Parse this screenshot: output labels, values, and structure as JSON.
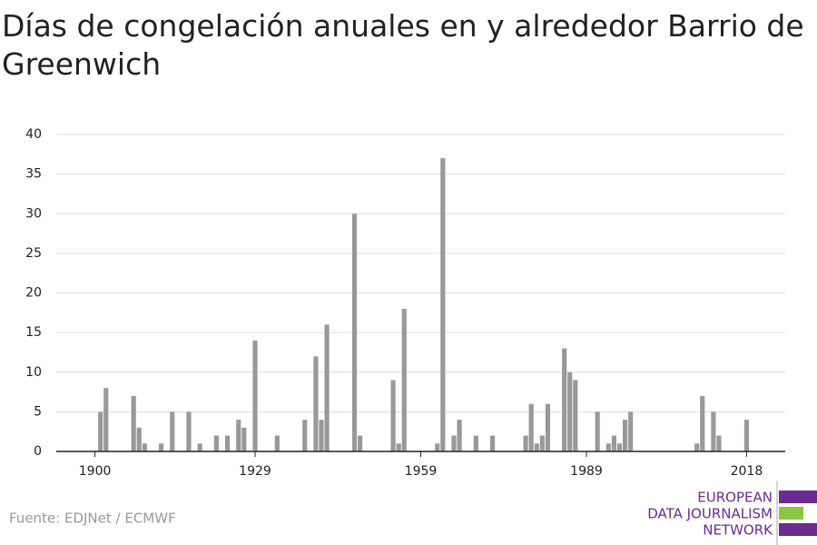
{
  "chart_data": {
    "type": "bar",
    "title": "Días de congelación anuales en y alrededor Barrio de Greenwich",
    "source": "Fuente: EDJNet / ECMWF",
    "logo": [
      "EUROPEAN",
      "DATA JOURNALISM",
      "NETWORK"
    ],
    "x": [
      1901,
      1902,
      1907,
      1908,
      1909,
      1912,
      1914,
      1917,
      1919,
      1922,
      1924,
      1926,
      1927,
      1929,
      1933,
      1938,
      1940,
      1941,
      1942,
      1947,
      1948,
      1954,
      1955,
      1956,
      1962,
      1963,
      1965,
      1966,
      1969,
      1972,
      1978,
      1979,
      1980,
      1981,
      1982,
      1985,
      1986,
      1987,
      1991,
      1993,
      1994,
      1995,
      1996,
      1997,
      2009,
      2010,
      2012,
      2013,
      2018
    ],
    "values": [
      5,
      8,
      7,
      3,
      1,
      1,
      5,
      5,
      1,
      2,
      2,
      4,
      3,
      14,
      2,
      4,
      12,
      4,
      16,
      30,
      2,
      9,
      1,
      18,
      1,
      37,
      2,
      4,
      2,
      2,
      2,
      6,
      1,
      2,
      6,
      13,
      10,
      9,
      5,
      1,
      2,
      1,
      4,
      5,
      1,
      7,
      5,
      2,
      4
    ],
    "color": "#999999",
    "xlim": [
      1893,
      2025
    ],
    "xticks": [
      1900,
      1929,
      1959,
      1989,
      2018
    ],
    "ylim": [
      0,
      40
    ],
    "yticks": [
      0,
      5,
      10,
      15,
      20,
      25,
      30,
      35,
      40
    ],
    "grid": true
  }
}
